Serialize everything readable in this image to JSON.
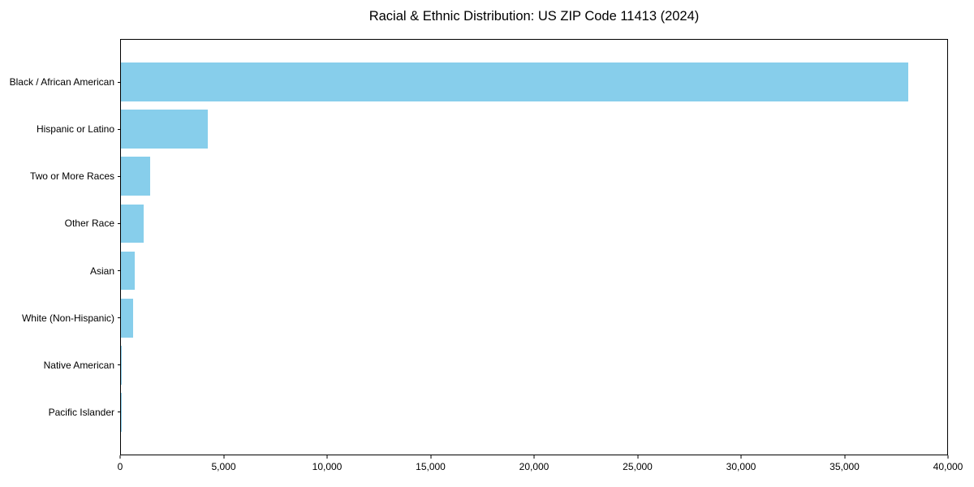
{
  "chart_data": {
    "type": "bar",
    "orientation": "horizontal",
    "title": "Racial & Ethnic Distribution: US ZIP Code 11413 (2024)",
    "categories": [
      "Black / African American",
      "Hispanic or Latino",
      "Two or More Races",
      "Other Race",
      "Asian",
      "White (Non-Hispanic)",
      "Native American",
      "Pacific Islander"
    ],
    "values": [
      38100,
      4200,
      1400,
      1100,
      650,
      600,
      40,
      15
    ],
    "xlabel": "",
    "ylabel": "",
    "xlim": [
      0,
      40000
    ],
    "xticks": [
      0,
      5000,
      10000,
      15000,
      20000,
      25000,
      30000,
      35000,
      40000
    ],
    "xtick_labels": [
      "0",
      "5,000",
      "10,000",
      "15,000",
      "20,000",
      "25,000",
      "30,000",
      "35,000",
      "40,000"
    ],
    "bar_color": "#87CEEB",
    "axis_color": "#000000",
    "background_color": "#ffffff",
    "grid": false,
    "legend": null
  }
}
